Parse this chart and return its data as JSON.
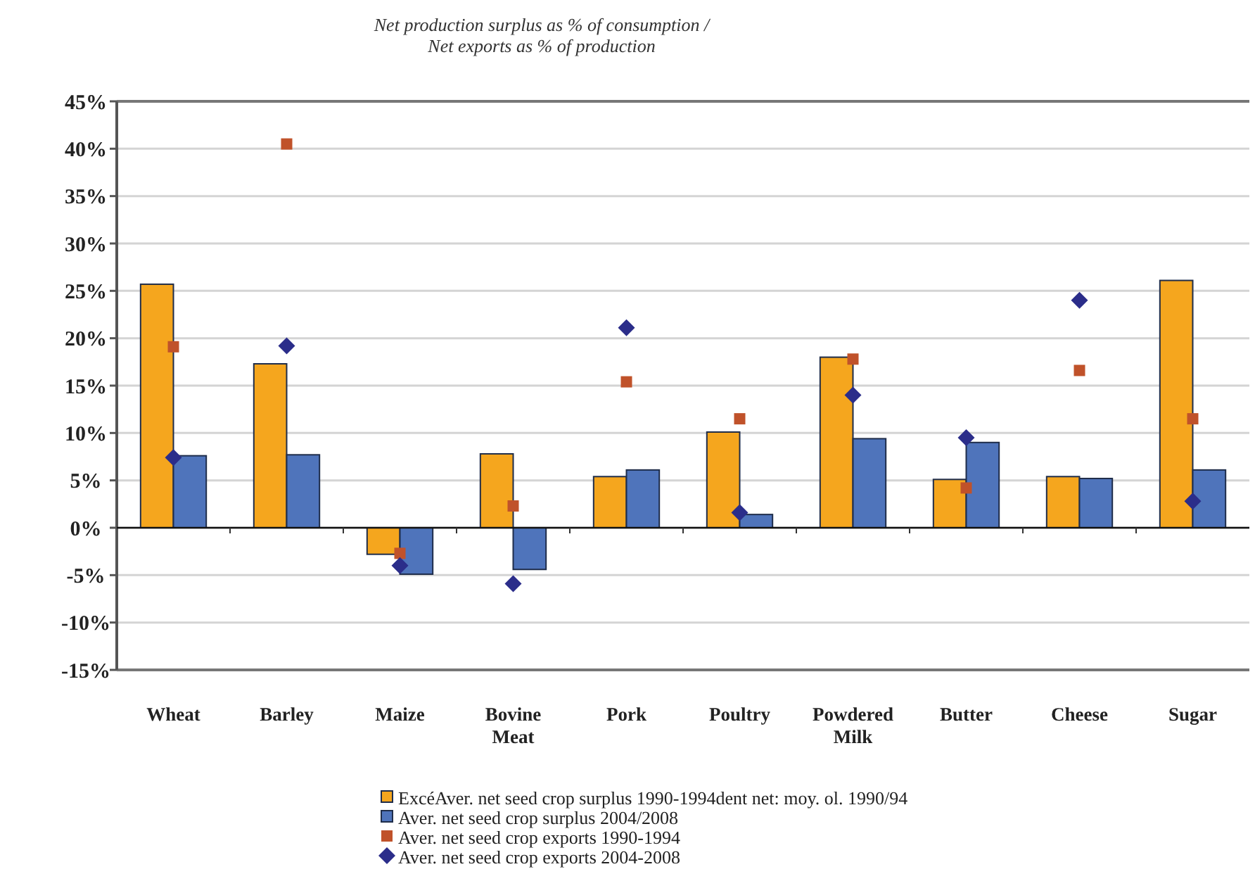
{
  "chart_data": {
    "type": "bar",
    "title": "Net production surplus as % of consumption /\nNet exports as % of production",
    "categories": [
      "Wheat",
      "Barley",
      "Maize",
      "Bovine Meat",
      "Pork",
      "Poultry",
      "Powdered Milk",
      "Butter",
      "Cheese",
      "Sugar"
    ],
    "series": [
      {
        "name": "ExcéAver. net seed crop surplus 1990-1994dent net: moy. ol. 1990/94",
        "color": "#f5a61e",
        "values": [
          25.7,
          17.3,
          -2.8,
          7.8,
          5.4,
          10.1,
          18,
          5.1,
          5.4,
          26.1
        ]
      },
      {
        "name": "Aver. net seed crop surplus 2004/2008",
        "color": "#4f74bb",
        "values": [
          7.6,
          7.7,
          -4.9,
          -4.4,
          6.1,
          1.4,
          9.4,
          9.0,
          5.2,
          6.1
        ]
      },
      {
        "name": "Aver. net seed crop exports 1990-1994",
        "type": "scatter",
        "marker": "square",
        "color": "#c0522a",
        "x": [
          "Wheat",
          "Barley",
          "Maize",
          "Bovine Meat",
          "Pork",
          "Poultry",
          "Powdered Milk",
          "Butter",
          "Cheese",
          "Sugar"
        ],
        "values": [
          19.1,
          40.5,
          -2.7,
          2.3,
          15.4,
          11.5,
          17.8,
          4.2,
          16.6,
          11.5
        ]
      },
      {
        "name": "Aver. net seed crop exports 2004-2008",
        "type": "scatter",
        "marker": "diamond",
        "color": "#2b2d8a",
        "x": [
          "Wheat",
          "Barley",
          "Maize",
          "Bovine Meat",
          "Pork",
          "Poultry",
          "Powdered Milk",
          "Butter",
          "Cheese",
          "Sugar"
        ],
        "values": [
          7.4,
          19.2,
          -4.0,
          -5.9,
          21.1,
          1.6,
          14.0,
          9.5,
          24.0,
          2.8
        ]
      }
    ],
    "ylim": [
      -15,
      45
    ],
    "yticks": [
      {
        "value": -15,
        "label": "-15%"
      },
      {
        "value": -10,
        "label": "-10%"
      },
      {
        "value": -5,
        "label": "-5%"
      },
      {
        "value": 0,
        "label": "0%"
      },
      {
        "value": 5,
        "label": "5%"
      },
      {
        "value": 10,
        "label": "10%"
      },
      {
        "value": 15,
        "label": "15%"
      },
      {
        "value": 20,
        "label": "20%"
      },
      {
        "value": 25,
        "label": "25%"
      },
      {
        "value": 30,
        "label": "30%"
      },
      {
        "value": 35,
        "label": "35%"
      },
      {
        "value": 40,
        "label": "40%"
      },
      {
        "value": 45,
        "label": "45%"
      }
    ],
    "grid": "y",
    "legend": "bottom"
  }
}
